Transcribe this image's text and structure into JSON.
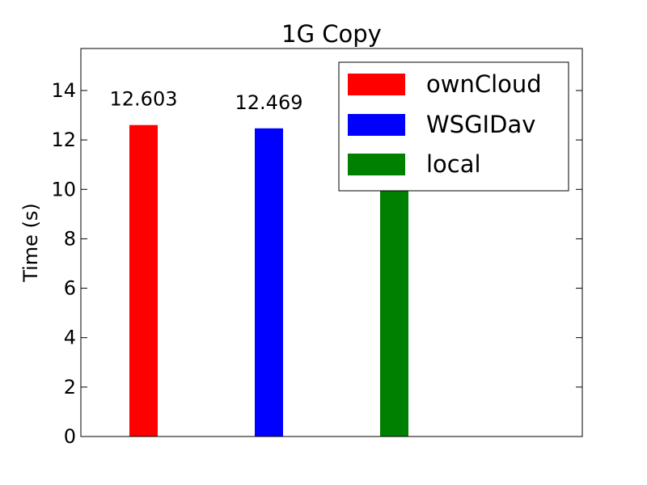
{
  "chart_data": {
    "type": "bar",
    "title": "1G Copy",
    "xlabel": "",
    "ylabel": "Time (s)",
    "ylim": [
      0,
      15.7
    ],
    "yticks": [
      0,
      2,
      4,
      6,
      8,
      10,
      12,
      14
    ],
    "grid": false,
    "legend_position": "top-right",
    "categories": [
      "ownCloud",
      "WSGIDav",
      "local"
    ],
    "series": [
      {
        "name": "ownCloud",
        "value": 12.603,
        "label": "12.603",
        "color": "#ff0000"
      },
      {
        "name": "WSGIDav",
        "value": 12.469,
        "label": "12.469",
        "color": "#0000ff"
      },
      {
        "name": "local",
        "value": 10.1,
        "label": "",
        "color": "#008000"
      }
    ]
  }
}
